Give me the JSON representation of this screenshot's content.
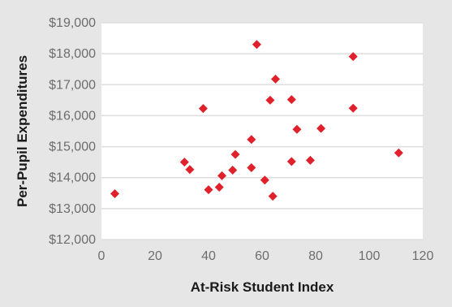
{
  "chart_data": {
    "type": "scatter",
    "title": "",
    "xlabel": "At-Risk Student Index",
    "ylabel": "Per-Pupil Expenditures",
    "xlim": [
      0,
      120
    ],
    "ylim": [
      12000,
      19000
    ],
    "x_ticks": [
      "0",
      "20",
      "40",
      "60",
      "80",
      "100",
      "120"
    ],
    "y_ticks": [
      "$12,000",
      "$13,000",
      "$14,000",
      "$15,000",
      "$16,000",
      "$17,000",
      "$18,000",
      "$19,000"
    ],
    "x_tick_values": [
      0,
      20,
      40,
      60,
      80,
      100,
      120
    ],
    "y_tick_values": [
      12000,
      13000,
      14000,
      15000,
      16000,
      17000,
      18000,
      19000
    ],
    "grid": "horizontal",
    "marker": "diamond",
    "marker_color": "#e0202a",
    "plot_background": "#ffffff",
    "page_background": "#e6e6e6",
    "points": [
      {
        "x": 5,
        "y": 13480
      },
      {
        "x": 31,
        "y": 14500
      },
      {
        "x": 33,
        "y": 14260
      },
      {
        "x": 38,
        "y": 16230
      },
      {
        "x": 40,
        "y": 13610
      },
      {
        "x": 44,
        "y": 13690
      },
      {
        "x": 45,
        "y": 14060
      },
      {
        "x": 49,
        "y": 14240
      },
      {
        "x": 50,
        "y": 14750
      },
      {
        "x": 56,
        "y": 14320
      },
      {
        "x": 56,
        "y": 15230
      },
      {
        "x": 58,
        "y": 18300
      },
      {
        "x": 61,
        "y": 13920
      },
      {
        "x": 63,
        "y": 16500
      },
      {
        "x": 64,
        "y": 13400
      },
      {
        "x": 65,
        "y": 17180
      },
      {
        "x": 71,
        "y": 14520
      },
      {
        "x": 71,
        "y": 16520
      },
      {
        "x": 73,
        "y": 15560
      },
      {
        "x": 78,
        "y": 14560
      },
      {
        "x": 82,
        "y": 15590
      },
      {
        "x": 94,
        "y": 17910
      },
      {
        "x": 94,
        "y": 16240
      },
      {
        "x": 111,
        "y": 14800
      }
    ]
  }
}
